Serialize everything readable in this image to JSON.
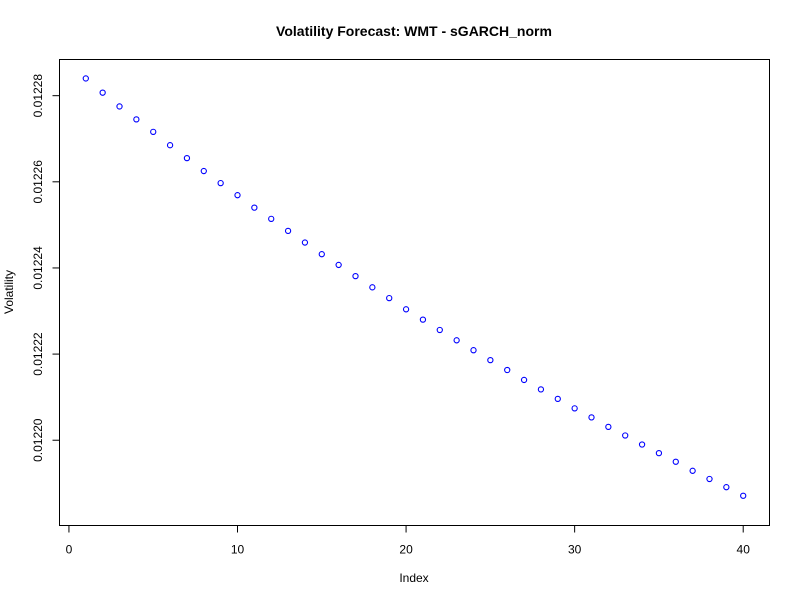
{
  "chart_data": {
    "type": "scatter",
    "title": "Volatility Forecast: WMT - sGARCH_norm",
    "xlabel": "Index",
    "ylabel": "Volatility",
    "x_ticks": [
      0,
      10,
      20,
      30,
      40
    ],
    "x_tick_labels": [
      "0",
      "10",
      "20",
      "30",
      "40"
    ],
    "y_ticks": [
      0.0122,
      0.01222,
      0.01224,
      0.01226,
      0.01228
    ],
    "y_tick_labels": [
      "0.01220",
      "0.01222",
      "0.01224",
      "0.01226",
      "0.01228"
    ],
    "xlim": [
      -0.56,
      41.56
    ],
    "ylim": [
      0.0121802,
      0.0122884
    ],
    "marker_color": "#0000ff",
    "grid": false,
    "series": [
      {
        "x": [
          1,
          2,
          3,
          4,
          5,
          6,
          7,
          8,
          9,
          10,
          11,
          12,
          13,
          14,
          15,
          16,
          17,
          18,
          19,
          20,
          21,
          22,
          23,
          24,
          25,
          26,
          27,
          28,
          29,
          30,
          31,
          32,
          33,
          34,
          35,
          36,
          37,
          38,
          39,
          40
        ],
        "values": [
          0.012284,
          0.0122807,
          0.0122775,
          0.0122745,
          0.0122716,
          0.0122685,
          0.0122655,
          0.0122625,
          0.0122597,
          0.0122569,
          0.012254,
          0.0122514,
          0.0122486,
          0.0122459,
          0.0122432,
          0.0122407,
          0.0122381,
          0.0122355,
          0.012233,
          0.0122304,
          0.012228,
          0.0122256,
          0.0122232,
          0.0122209,
          0.0122186,
          0.0122163,
          0.012214,
          0.0122118,
          0.0122096,
          0.0122074,
          0.0122053,
          0.0122031,
          0.0122011,
          0.012199,
          0.012197,
          0.012195,
          0.0121929,
          0.012191,
          0.0121891,
          0.0121871
        ]
      }
    ]
  }
}
